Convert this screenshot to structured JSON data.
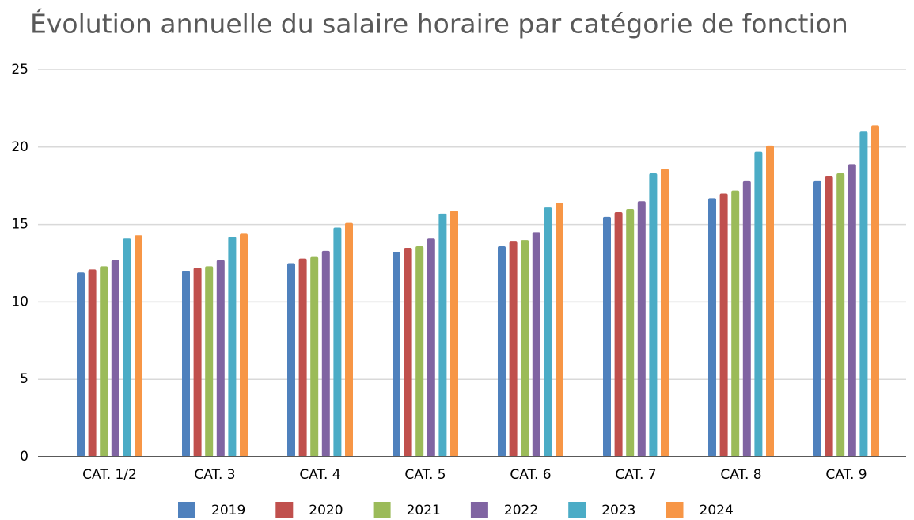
{
  "chart_data": {
    "type": "bar",
    "title": "Évolution annuelle du salaire horaire par catégorie de fonction",
    "categories": [
      "CAT. 1/2",
      "CAT. 3",
      "CAT. 4",
      "CAT. 5",
      "CAT. 6",
      "CAT. 7",
      "CAT. 8",
      "CAT. 9"
    ],
    "series": [
      {
        "name": "2019",
        "color": "#4f81bd",
        "values": [
          11.9,
          12.0,
          12.5,
          13.2,
          13.6,
          15.5,
          16.7,
          17.8
        ]
      },
      {
        "name": "2020",
        "color": "#c0504d",
        "values": [
          12.1,
          12.2,
          12.8,
          13.5,
          13.9,
          15.8,
          17.0,
          18.1
        ]
      },
      {
        "name": "2021",
        "color": "#9bbb59",
        "values": [
          12.3,
          12.3,
          12.9,
          13.6,
          14.0,
          16.0,
          17.2,
          18.3
        ]
      },
      {
        "name": "2022",
        "color": "#8064a2",
        "values": [
          12.7,
          12.7,
          13.3,
          14.1,
          14.5,
          16.5,
          17.8,
          18.9
        ]
      },
      {
        "name": "2023",
        "color": "#4bacc6",
        "values": [
          14.1,
          14.2,
          14.8,
          15.7,
          16.1,
          18.3,
          19.7,
          21.0
        ]
      },
      {
        "name": "2024",
        "color": "#f79646",
        "values": [
          14.3,
          14.4,
          15.1,
          15.9,
          16.4,
          18.6,
          20.1,
          21.4
        ]
      }
    ],
    "ylim": [
      0,
      25
    ],
    "yticks": [
      0,
      5,
      10,
      15,
      20,
      25
    ],
    "grid": true,
    "legend": "bottom"
  }
}
